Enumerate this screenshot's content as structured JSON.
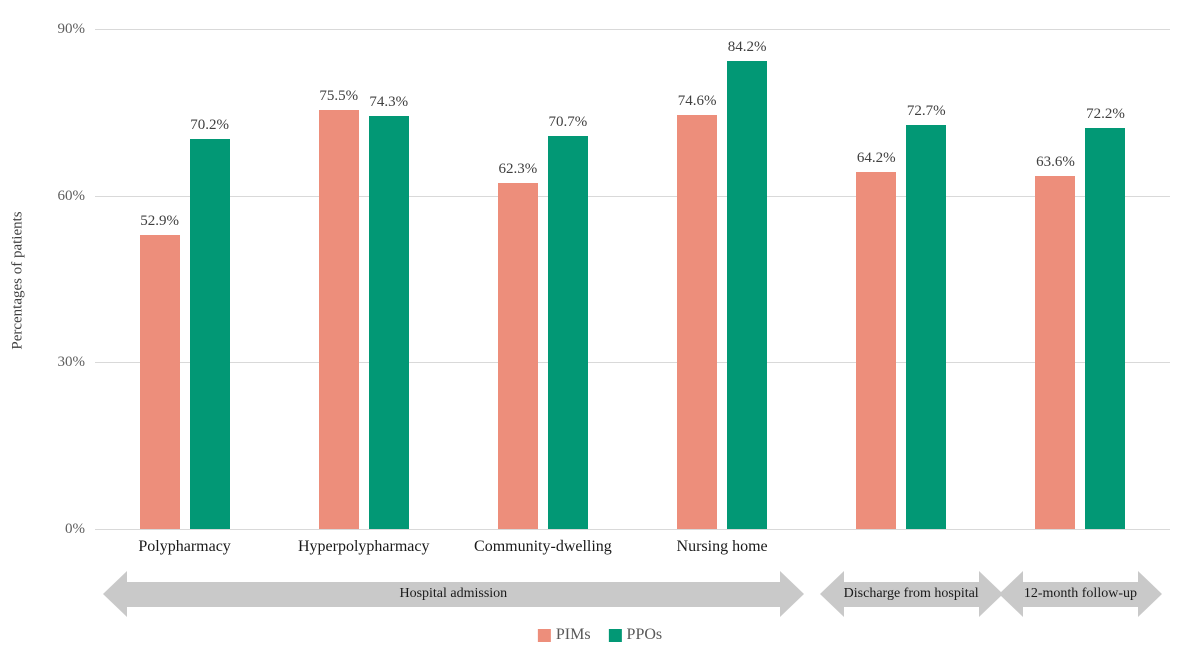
{
  "chart_data": {
    "type": "bar",
    "title": "",
    "ylabel": "Percentages of patients",
    "ylim": [
      0,
      90
    ],
    "yticks": [
      0,
      30,
      60,
      90
    ],
    "ytick_suffix": "%",
    "grid": "horizontal",
    "legend_position": "bottom-center",
    "categories": [
      "Polypharmacy",
      "Hyperpolypharmacy",
      "Community-dwelling",
      "Nursing home",
      "",
      ""
    ],
    "series": [
      {
        "name": "PIMs",
        "color": "#ED8E7B",
        "values": [
          52.9,
          75.5,
          62.3,
          74.6,
          64.2,
          63.6
        ]
      },
      {
        "name": "PPOs",
        "color": "#029875",
        "values": [
          70.2,
          74.3,
          70.7,
          84.2,
          72.7,
          72.2
        ]
      }
    ],
    "data_label_suffix": "%",
    "phase_arrows": [
      {
        "label": "Hospital admission",
        "start_category": 0,
        "end_category": 3
      },
      {
        "label": "Discharge from hospital",
        "start_category": 4,
        "end_category": 4
      },
      {
        "label": "12-month follow-up",
        "start_category": 5,
        "end_category": 5
      }
    ],
    "colors": {
      "arrow_fill": "#C9C9C9",
      "gridline": "#D9D9D9",
      "tick_label": "#5F5F5F",
      "data_label": "#404040",
      "category_label": "#1A1A1A",
      "legend_label": "#595959",
      "background": "#FFFFFF"
    }
  }
}
